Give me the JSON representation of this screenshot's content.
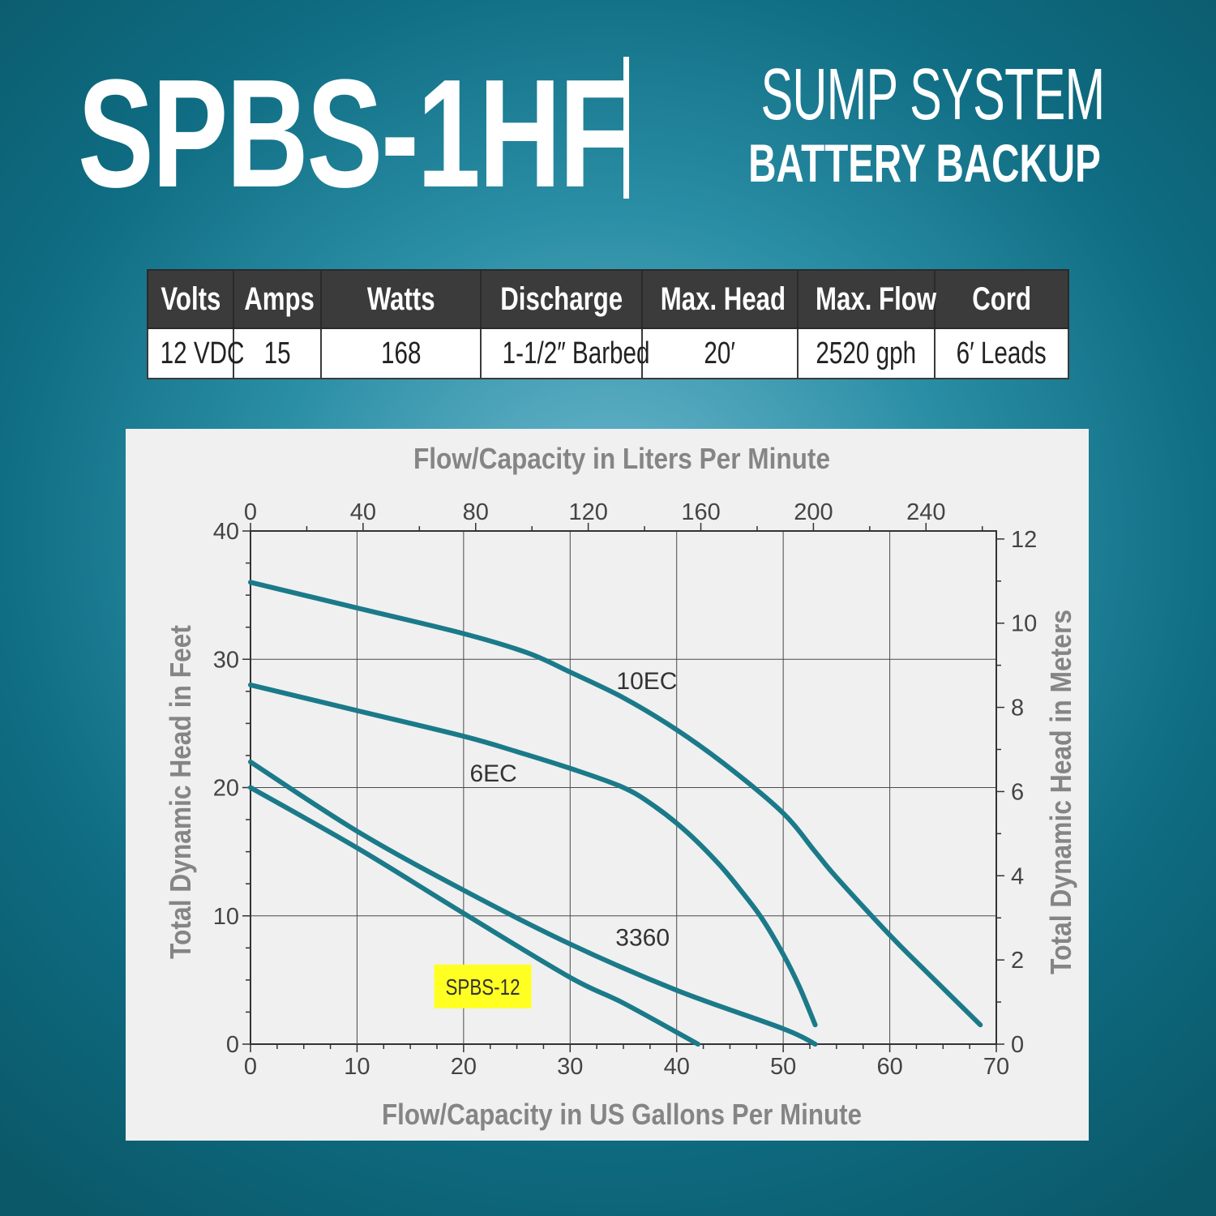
{
  "header": {
    "model": "SPBS-1HF",
    "line1": "SUMP SYSTEM",
    "line2": "BATTERY BACKUP"
  },
  "specs": {
    "headers": [
      "Volts",
      "Amps",
      "Watts",
      "Discharge",
      "Max. Head",
      "Max. Flow",
      "Cord"
    ],
    "values": [
      "12 VDC",
      "15",
      "168",
      "1-1/2″ Barbed",
      "20′",
      "2520 gph",
      "6′ Leads"
    ]
  },
  "colors": {
    "curve": "#1b7a89",
    "highlight": "#ffff22",
    "axis_text": "#858585",
    "grid": "#999999"
  },
  "chart_data": {
    "type": "line",
    "title": "Flow/Capacity in Liters Per Minute",
    "xlabel": "Flow/Capacity in US Gallons Per Minute",
    "ylabel": "Total Dynamic Head in Feet",
    "y2label": "Total Dynamic Head in Meters",
    "xlim": [
      0,
      70
    ],
    "ylim": [
      0,
      40
    ],
    "x2lim": [
      0,
      264.98
    ],
    "y2lim": [
      0,
      12.19
    ],
    "xticks": [
      "0",
      "10",
      "20",
      "30",
      "40",
      "50",
      "60",
      "70"
    ],
    "yticks": [
      "0",
      "10",
      "20",
      "30",
      "40"
    ],
    "x2ticks": [
      "0",
      "40",
      "80",
      "120",
      "160",
      "200",
      "240"
    ],
    "y2ticks": [
      "0",
      "2",
      "4",
      "6",
      "8",
      "10",
      "12"
    ],
    "grid": true,
    "series": [
      {
        "name": "10EC",
        "x": [
          0,
          10,
          20,
          26,
          30,
          35,
          40,
          45,
          50,
          53,
          55,
          60,
          63,
          68.5
        ],
        "y": [
          36,
          34,
          32,
          30.5,
          29,
          27,
          24.5,
          21.5,
          18,
          15,
          13,
          8.5,
          6,
          1.5
        ]
      },
      {
        "name": "6EC",
        "x": [
          0,
          10,
          20,
          25,
          30,
          35,
          38,
          41,
          44,
          46,
          48,
          50,
          51.5,
          53
        ],
        "y": [
          28,
          26,
          24,
          22.8,
          21.5,
          20,
          18.5,
          16.5,
          14,
          12,
          9.8,
          7,
          4.5,
          1.5
        ]
      },
      {
        "name": "3360",
        "x": [
          0,
          10,
          20,
          30,
          40,
          50,
          53
        ],
        "y": [
          22,
          16.6,
          12,
          7.8,
          4.2,
          1.2,
          0
        ]
      },
      {
        "name": "SPBS-12",
        "x": [
          0,
          10,
          20,
          30,
          35,
          42
        ],
        "y": [
          20,
          15.3,
          10.2,
          5.2,
          3.2,
          0
        ],
        "highlight": true
      }
    ]
  }
}
